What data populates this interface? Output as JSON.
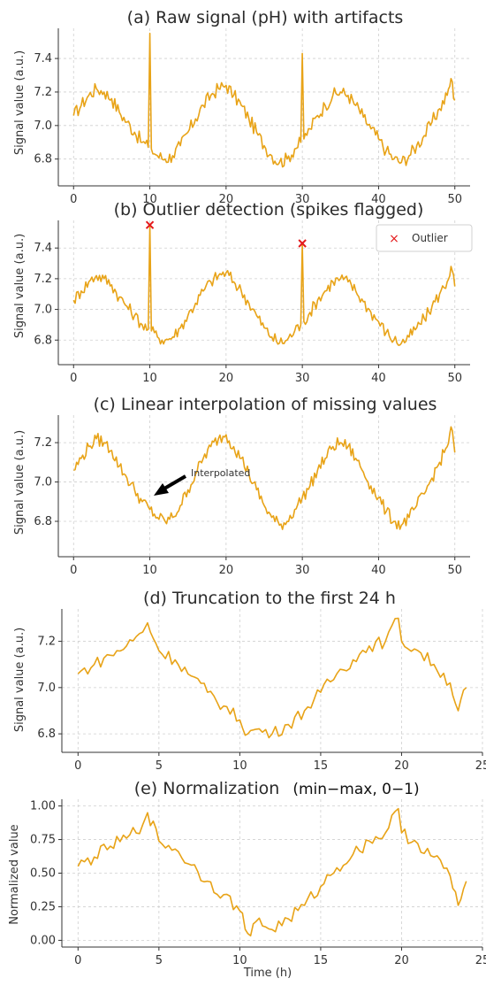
{
  "line_color": "#E8A317",
  "outlier_color": "#E41A1C",
  "chart_data": [
    {
      "id": "a",
      "type": "line",
      "title": "(a) Raw signal (pH) with artifacts",
      "xlabel": "",
      "ylabel": "Signal value (a.u.)",
      "xlim": [
        -2,
        52
      ],
      "ylim": [
        6.64,
        7.58
      ],
      "xticks": [
        0,
        10,
        20,
        30,
        40,
        50
      ],
      "yticks": [
        6.8,
        7.0,
        7.2,
        7.4
      ],
      "ytick_labels": [
        "6.8",
        "7.0",
        "7.2",
        "7.4"
      ],
      "grid": true,
      "series": [
        {
          "x": [
            0,
            1,
            2,
            3,
            4,
            5,
            6,
            7,
            8,
            9,
            9.8,
            10,
            10.2,
            11,
            12,
            13,
            14,
            15,
            16,
            17,
            18,
            19,
            20,
            21,
            22,
            23,
            24,
            25,
            26,
            27,
            28,
            29,
            29.8,
            30,
            30.2,
            31,
            32,
            33,
            34,
            35,
            36,
            37,
            38,
            39,
            40,
            41,
            42,
            43,
            44,
            45,
            46,
            47,
            48,
            49,
            49.5,
            50
          ],
          "y": [
            7.06,
            7.12,
            7.18,
            7.22,
            7.2,
            7.16,
            7.08,
            7.02,
            6.96,
            6.9,
            6.87,
            7.55,
            6.86,
            6.82,
            6.8,
            6.82,
            6.88,
            6.96,
            7.04,
            7.12,
            7.18,
            7.22,
            7.24,
            7.18,
            7.12,
            7.04,
            6.96,
            6.88,
            6.82,
            6.78,
            6.8,
            6.86,
            6.9,
            7.43,
            6.92,
            6.98,
            7.06,
            7.12,
            7.18,
            7.2,
            7.18,
            7.12,
            7.05,
            6.98,
            6.92,
            6.85,
            6.8,
            6.78,
            6.82,
            6.88,
            6.94,
            7.02,
            7.1,
            7.18,
            7.28,
            7.15
          ]
        }
      ]
    },
    {
      "id": "b",
      "type": "line",
      "title": "(b) Outlier detection (spikes flagged)",
      "xlabel": "",
      "ylabel": "Signal value (a.u.)",
      "xlim": [
        -2,
        52
      ],
      "ylim": [
        6.64,
        7.58
      ],
      "xticks": [
        0,
        10,
        20,
        30,
        40,
        50
      ],
      "yticks": [
        6.8,
        7.0,
        7.2,
        7.4
      ],
      "ytick_labels": [
        "6.8",
        "7.0",
        "7.2",
        "7.4"
      ],
      "grid": true,
      "legend": {
        "entries": [
          "Outlier"
        ],
        "position": "top-right"
      },
      "outliers": [
        {
          "x": 10,
          "y": 7.55
        },
        {
          "x": 30,
          "y": 7.43
        }
      ],
      "series": [
        {
          "x": [
            0,
            1,
            2,
            3,
            4,
            5,
            6,
            7,
            8,
            9,
            9.8,
            10,
            10.2,
            11,
            12,
            13,
            14,
            15,
            16,
            17,
            18,
            19,
            20,
            21,
            22,
            23,
            24,
            25,
            26,
            27,
            28,
            29,
            29.8,
            30,
            30.2,
            31,
            32,
            33,
            34,
            35,
            36,
            37,
            38,
            39,
            40,
            41,
            42,
            43,
            44,
            45,
            46,
            47,
            48,
            49,
            49.5,
            50
          ],
          "y": [
            7.06,
            7.12,
            7.18,
            7.22,
            7.2,
            7.16,
            7.08,
            7.02,
            6.96,
            6.9,
            6.87,
            7.55,
            6.86,
            6.82,
            6.8,
            6.82,
            6.88,
            6.96,
            7.04,
            7.12,
            7.18,
            7.22,
            7.24,
            7.18,
            7.12,
            7.04,
            6.96,
            6.88,
            6.82,
            6.78,
            6.8,
            6.86,
            6.9,
            7.43,
            6.92,
            6.98,
            7.06,
            7.12,
            7.18,
            7.2,
            7.18,
            7.12,
            7.05,
            6.98,
            6.92,
            6.85,
            6.8,
            6.78,
            6.82,
            6.88,
            6.94,
            7.02,
            7.1,
            7.18,
            7.28,
            7.15
          ]
        }
      ]
    },
    {
      "id": "c",
      "type": "line",
      "title": "(c) Linear interpolation of missing values",
      "xlabel": "",
      "ylabel": "Signal value (a.u.)",
      "xlim": [
        -2,
        52
      ],
      "ylim": [
        6.62,
        7.34
      ],
      "xticks": [
        0,
        10,
        20,
        30,
        40,
        50
      ],
      "yticks": [
        6.8,
        7.0,
        7.2
      ],
      "ytick_labels": [
        "6.8",
        "7.0",
        "7.2"
      ],
      "grid": true,
      "annotation": {
        "text": "Interpolated",
        "x": 10,
        "y": 6.95
      },
      "series": [
        {
          "x": [
            0,
            1,
            2,
            3,
            4,
            5,
            6,
            7,
            8,
            9,
            10,
            11,
            12,
            13,
            14,
            15,
            16,
            17,
            18,
            19,
            20,
            21,
            22,
            23,
            24,
            25,
            26,
            27,
            28,
            29,
            30,
            31,
            32,
            33,
            34,
            35,
            36,
            37,
            38,
            39,
            40,
            41,
            42,
            43,
            44,
            45,
            46,
            47,
            48,
            49,
            49.5,
            50
          ],
          "y": [
            7.06,
            7.12,
            7.18,
            7.22,
            7.2,
            7.16,
            7.08,
            7.02,
            6.96,
            6.9,
            6.86,
            6.82,
            6.8,
            6.82,
            6.88,
            6.96,
            7.04,
            7.12,
            7.18,
            7.22,
            7.24,
            7.18,
            7.12,
            7.04,
            6.96,
            6.88,
            6.82,
            6.78,
            6.8,
            6.86,
            6.92,
            6.98,
            7.06,
            7.12,
            7.18,
            7.2,
            7.18,
            7.12,
            7.05,
            6.98,
            6.92,
            6.85,
            6.8,
            6.78,
            6.82,
            6.88,
            6.94,
            7.02,
            7.1,
            7.18,
            7.28,
            7.15
          ]
        }
      ]
    },
    {
      "id": "d",
      "type": "line",
      "title": "(d) Truncation to the first 24 h",
      "xlabel": "",
      "ylabel": "Signal value (a.u.)",
      "xlim": [
        -1,
        25
      ],
      "ylim": [
        6.72,
        7.34
      ],
      "xticks": [
        0,
        5,
        10,
        15,
        20,
        25
      ],
      "yticks": [
        6.8,
        7.0,
        7.2
      ],
      "ytick_labels": [
        "6.8",
        "7.0",
        "7.2"
      ],
      "grid": true,
      "series": [
        {
          "x": [
            0,
            1,
            2,
            3,
            4,
            4.3,
            5,
            6,
            7,
            8,
            9,
            10,
            10.5,
            11,
            12,
            13,
            14,
            15,
            16,
            17,
            18,
            19,
            19.8,
            20,
            21,
            22,
            23,
            23.5,
            24
          ],
          "y": [
            7.06,
            7.1,
            7.14,
            7.18,
            7.24,
            7.28,
            7.16,
            7.12,
            7.05,
            6.98,
            6.92,
            6.86,
            6.8,
            6.82,
            6.8,
            6.84,
            6.9,
            6.98,
            7.06,
            7.12,
            7.18,
            7.2,
            7.3,
            7.2,
            7.16,
            7.1,
            7.02,
            6.9,
            7.0
          ]
        }
      ]
    },
    {
      "id": "e",
      "type": "line",
      "title": "(e) Normalization",
      "subtitle": "(min−max, 0−1)",
      "xlabel": "Time (h)",
      "ylabel": "Normalized value",
      "xlim": [
        -1,
        25
      ],
      "ylim": [
        -0.05,
        1.05
      ],
      "xticks": [
        0,
        5,
        10,
        15,
        20,
        25
      ],
      "yticks": [
        0,
        0.25,
        0.5,
        0.75,
        1.0
      ],
      "ytick_labels": [
        "0.00",
        "0.25",
        "0.50",
        "0.75",
        "1.00"
      ],
      "grid": true,
      "series": [
        {
          "x": [
            0,
            1,
            2,
            3,
            4,
            4.3,
            5,
            6,
            7,
            8,
            9,
            10,
            10.5,
            11,
            12,
            13,
            14,
            15,
            16,
            17,
            18,
            19,
            19.8,
            20,
            21,
            22,
            23,
            23.5,
            24
          ],
          "y": [
            0.55,
            0.62,
            0.7,
            0.76,
            0.86,
            0.95,
            0.74,
            0.68,
            0.56,
            0.44,
            0.34,
            0.22,
            0.05,
            0.14,
            0.08,
            0.16,
            0.26,
            0.4,
            0.54,
            0.64,
            0.74,
            0.8,
            0.98,
            0.8,
            0.72,
            0.62,
            0.48,
            0.26,
            0.44
          ]
        }
      ]
    }
  ]
}
